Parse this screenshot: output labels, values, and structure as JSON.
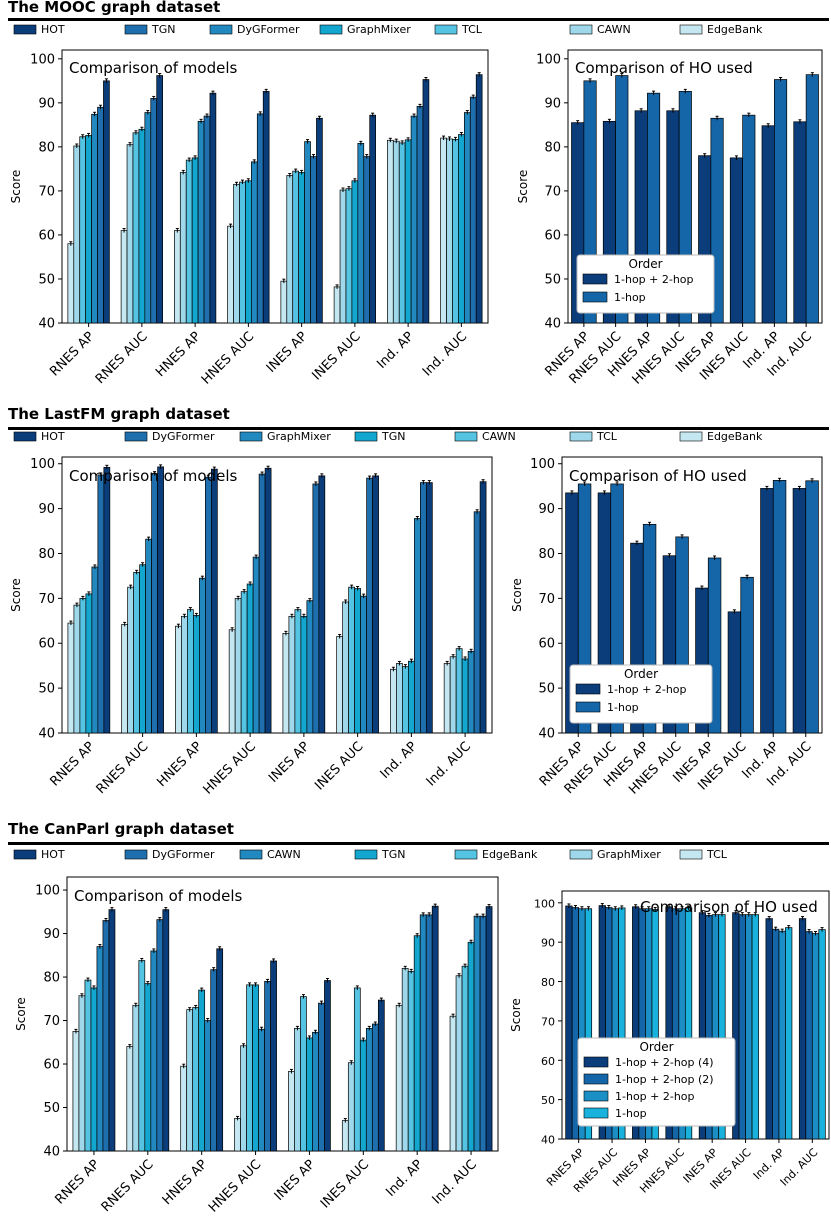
{
  "colors": {
    "HOT": "#0b3d7a",
    "TGN": "#1f6fae",
    "DyGFormer": "#2289c0",
    "GraphMixer": "#13a6cf",
    "TCL": "#55c3e2",
    "CAWN": "#9ed8ea",
    "EdgeBank": "#c5e7f1",
    "O1": "#0b3d7a",
    "O2": "#1466a8",
    "O3": "#1c8ec6",
    "O4": "#18b2dc"
  },
  "sections": [
    {
      "title": "The MOOC graph dataset",
      "legend": [
        "HOT",
        "TGN",
        "DyGFormer",
        "GraphMixer",
        "TCL",
        "CAWN",
        "EdgeBank"
      ],
      "legend_colors": [
        "HOT",
        "TGN",
        "DyGFormer",
        "GraphMixer",
        "TCL",
        "CAWN",
        "EdgeBank"
      ]
    },
    {
      "title": "The LastFM graph dataset",
      "legend": [
        "HOT",
        "DyGFormer",
        "GraphMixer",
        "TGN",
        "CAWN",
        "TCL",
        "EdgeBank"
      ],
      "legend_colors": [
        "HOT",
        "TGN",
        "DyGFormer",
        "GraphMixer",
        "TCL",
        "CAWN",
        "EdgeBank"
      ]
    },
    {
      "title": "The CanParl graph dataset",
      "legend": [
        "HOT",
        "DyGFormer",
        "CAWN",
        "TGN",
        "EdgeBank",
        "GraphMixer",
        "TCL"
      ],
      "legend_colors": [
        "HOT",
        "TGN",
        "DyGFormer",
        "GraphMixer",
        "TCL",
        "CAWN",
        "EdgeBank"
      ]
    }
  ],
  "chart_data": [
    {
      "id": "mooc-models",
      "type": "bar",
      "title": "Comparison of models",
      "xlabel": "",
      "ylabel": "Score",
      "ylim": [
        40,
        102
      ],
      "yticks": [
        40,
        50,
        60,
        70,
        80,
        90,
        100
      ],
      "categories": [
        "RNES AP",
        "RNES AUC",
        "HNES AP",
        "HNES AUC",
        "INES AP",
        "INES AUC",
        "Ind. AP",
        "Ind. AUC"
      ],
      "series": [
        {
          "name": "EdgeBank",
          "color": "EdgeBank",
          "values": [
            58,
            61,
            61,
            62,
            49.5,
            48.2,
            81.5,
            82
          ]
        },
        {
          "name": "CAWN",
          "color": "CAWN",
          "values": [
            80.2,
            80.5,
            74.2,
            71.5,
            73.5,
            70.2,
            81.3,
            81.8
          ]
        },
        {
          "name": "TCL",
          "color": "TCL",
          "values": [
            82.3,
            83.2,
            77,
            72,
            74.5,
            70.5,
            80.9,
            81.7
          ]
        },
        {
          "name": "GraphMixer",
          "color": "GraphMixer",
          "values": [
            82.6,
            84,
            77.5,
            72.3,
            74.2,
            72.3,
            81.6,
            82.8
          ]
        },
        {
          "name": "DyGFormer",
          "color": "DyGFormer",
          "values": [
            87.4,
            87.8,
            85.8,
            76.6,
            81.2,
            80.8,
            87,
            87.8
          ]
        },
        {
          "name": "TGN",
          "color": "TGN",
          "values": [
            89,
            91,
            87,
            87.5,
            77.8,
            77.8,
            89.2,
            91.3
          ]
        },
        {
          "name": "HOT",
          "color": "HOT",
          "values": [
            95,
            96.2,
            92.2,
            92.6,
            86.5,
            87.2,
            95.3,
            96.4
          ]
        }
      ]
    },
    {
      "id": "mooc-ho",
      "type": "bar",
      "title": "Comparison of HO used",
      "xlabel": "",
      "ylabel": "Score",
      "ylim": [
        40,
        102
      ],
      "yticks": [
        40,
        50,
        60,
        70,
        80,
        90,
        100
      ],
      "categories": [
        "RNES AP",
        "RNES AUC",
        "HNES AP",
        "HNES AUC",
        "INES AP",
        "INES AUC",
        "Ind. AP",
        "Ind. AUC"
      ],
      "legend_title": "Order",
      "legend": [
        "1-hop + 2-hop",
        "1-hop"
      ],
      "series": [
        {
          "name": "1-hop + 2-hop",
          "color": "O1",
          "values": [
            85.5,
            85.8,
            88.2,
            88.2,
            78,
            77.5,
            84.8,
            85.7
          ]
        },
        {
          "name": "1-hop",
          "color": "O2",
          "values": [
            95,
            96.2,
            92.2,
            92.6,
            86.5,
            87.2,
            95.3,
            96.4
          ]
        }
      ]
    },
    {
      "id": "lastfm-models",
      "type": "bar",
      "title": "Comparison of models",
      "xlabel": "",
      "ylabel": "Score",
      "ylim": [
        40,
        101.5
      ],
      "yticks": [
        40,
        50,
        60,
        70,
        80,
        90,
        100
      ],
      "categories": [
        "RNES AP",
        "RNES AUC",
        "HNES AP",
        "HNES AUC",
        "INES AP",
        "INES AUC",
        "Ind. AP",
        "Ind. AUC"
      ],
      "series": [
        {
          "name": "EdgeBank",
          "color": "EdgeBank",
          "values": [
            64.5,
            64.2,
            63.8,
            63,
            62.2,
            61.5,
            54.2,
            55.5
          ]
        },
        {
          "name": "TCL",
          "color": "CAWN",
          "values": [
            68.5,
            72.5,
            66,
            70,
            66,
            69.2,
            55.5,
            57
          ]
        },
        {
          "name": "CAWN",
          "color": "TCL",
          "values": [
            70,
            75.8,
            67.5,
            71.5,
            67.5,
            72.5,
            54.8,
            58.8
          ]
        },
        {
          "name": "TGN",
          "color": "GraphMixer",
          "values": [
            71,
            77.5,
            66.2,
            73.2,
            66,
            72.2,
            56,
            56.5
          ]
        },
        {
          "name": "GraphMixer",
          "color": "DyGFormer",
          "values": [
            77,
            83.2,
            74.5,
            79.2,
            69.5,
            70.5,
            87.8,
            58.2
          ]
        },
        {
          "name": "DyGFormer",
          "color": "TGN",
          "values": [
            97.5,
            97.8,
            97,
            97.7,
            95.5,
            96.8,
            95.8,
            89.3
          ]
        },
        {
          "name": "HOT",
          "color": "HOT",
          "values": [
            99.2,
            99.3,
            98.8,
            99,
            97.3,
            97.3,
            95.8,
            96
          ]
        }
      ]
    },
    {
      "id": "lastfm-ho",
      "type": "bar",
      "title": "Comparison of HO used",
      "xlabel": "",
      "ylabel": "Score",
      "ylim": [
        40,
        101.5
      ],
      "yticks": [
        40,
        50,
        60,
        70,
        80,
        90,
        100
      ],
      "categories": [
        "RNES AP",
        "RNES AUC",
        "HNES AP",
        "HNES AUC",
        "INES AP",
        "INES AUC",
        "Ind. AP",
        "Ind. AUC"
      ],
      "legend_title": "Order",
      "legend": [
        "1-hop + 2-hop",
        "1-hop"
      ],
      "series": [
        {
          "name": "1-hop + 2-hop",
          "color": "O1",
          "values": [
            93.5,
            93.5,
            82.3,
            79.5,
            72.3,
            67,
            94.5,
            94.5
          ]
        },
        {
          "name": "1-hop",
          "color": "O2",
          "values": [
            95.5,
            95.5,
            86.5,
            83.7,
            79,
            74.7,
            96.3,
            96.2
          ]
        }
      ]
    },
    {
      "id": "canparl-models",
      "type": "bar",
      "title": "Comparison of models",
      "xlabel": "",
      "ylabel": "Score",
      "ylim": [
        40,
        103
      ],
      "yticks": [
        40,
        50,
        60,
        70,
        80,
        90,
        100
      ],
      "categories": [
        "RNES AP",
        "RNES AUC",
        "HNES AP",
        "HNES AUC",
        "INES AP",
        "INES AUC",
        "Ind. AP",
        "Ind. AUC"
      ],
      "series": [
        {
          "name": "TCL",
          "color": "EdgeBank",
          "values": [
            67.5,
            64,
            59.5,
            47.5,
            58.3,
            47,
            73.5,
            71
          ]
        },
        {
          "name": "GraphMixer",
          "color": "CAWN",
          "values": [
            75.7,
            73.5,
            72.5,
            64.2,
            68.2,
            60.3,
            82,
            80.3
          ]
        },
        {
          "name": "EdgeBank",
          "color": "TCL",
          "values": [
            79.3,
            83.8,
            73,
            78.2,
            75.5,
            77.5,
            81.3,
            82.5
          ]
        },
        {
          "name": "TGN",
          "color": "GraphMixer",
          "values": [
            77.5,
            78.5,
            77,
            78.2,
            66,
            65.5,
            89.5,
            88
          ]
        },
        {
          "name": "CAWN",
          "color": "DyGFormer",
          "values": [
            87,
            86,
            70,
            68,
            67.3,
            68.2,
            94.3,
            94
          ]
        },
        {
          "name": "DyGFormer",
          "color": "TGN",
          "values": [
            93,
            93.2,
            81.7,
            79,
            74,
            69.2,
            94.3,
            94
          ]
        },
        {
          "name": "HOT",
          "color": "HOT",
          "values": [
            95.5,
            95.5,
            86.5,
            83.7,
            79.2,
            74.7,
            96.3,
            96.2
          ]
        }
      ]
    },
    {
      "id": "canparl-ho",
      "type": "bar",
      "title": "Comparison of HO used",
      "xlabel": "",
      "ylabel": "Score",
      "ylim": [
        40,
        103
      ],
      "yticks": [
        40,
        50,
        60,
        70,
        80,
        90,
        100
      ],
      "categories": [
        "RNES AP",
        "RNES AUC",
        "HNES AP",
        "HNES AUC",
        "INES AP",
        "INES AUC",
        "Ind. AP",
        "Ind. AUC"
      ],
      "legend_title": "Order",
      "legend": [
        "1-hop + 2-hop (4)",
        "1-hop + 2-hop (2)",
        "1-hop + 2-hop",
        "1-hop"
      ],
      "series": [
        {
          "name": "1-hop + 2-hop (4)",
          "color": "O1",
          "values": [
            99.2,
            99.3,
            99,
            99,
            97.5,
            97.5,
            96,
            96
          ]
        },
        {
          "name": "1-hop + 2-hop (2)",
          "color": "O2",
          "values": [
            98.8,
            98.8,
            98.5,
            98.5,
            96.8,
            97,
            93.3,
            92.7
          ]
        },
        {
          "name": "1-hop + 2-hop",
          "color": "O3",
          "values": [
            98.5,
            98.5,
            98.5,
            98.5,
            97,
            97,
            92.8,
            92.2
          ]
        },
        {
          "name": "1-hop",
          "color": "O4",
          "values": [
            98.5,
            98.7,
            98.3,
            98.7,
            97,
            97,
            93.7,
            93.2
          ]
        }
      ]
    }
  ]
}
